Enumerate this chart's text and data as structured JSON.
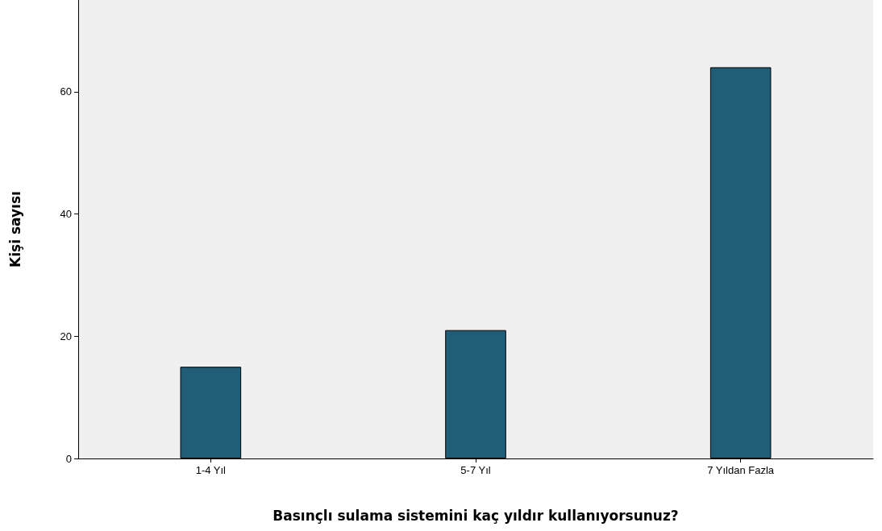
{
  "chart_data": {
    "type": "bar",
    "xlabel": "Basınçlı sulama sistemini kaç yıldır kullanıyorsunuz?",
    "ylabel": "Kişi sayısı",
    "categories": [
      "1-4 Yıl",
      "5-7 Yıl",
      "7 Yıldan Fazla"
    ],
    "values": [
      15,
      21,
      64
    ],
    "color": "#1f5e76",
    "ylim": [
      0,
      75
    ],
    "yticks": [
      0,
      20,
      40,
      60
    ],
    "grid": false
  }
}
